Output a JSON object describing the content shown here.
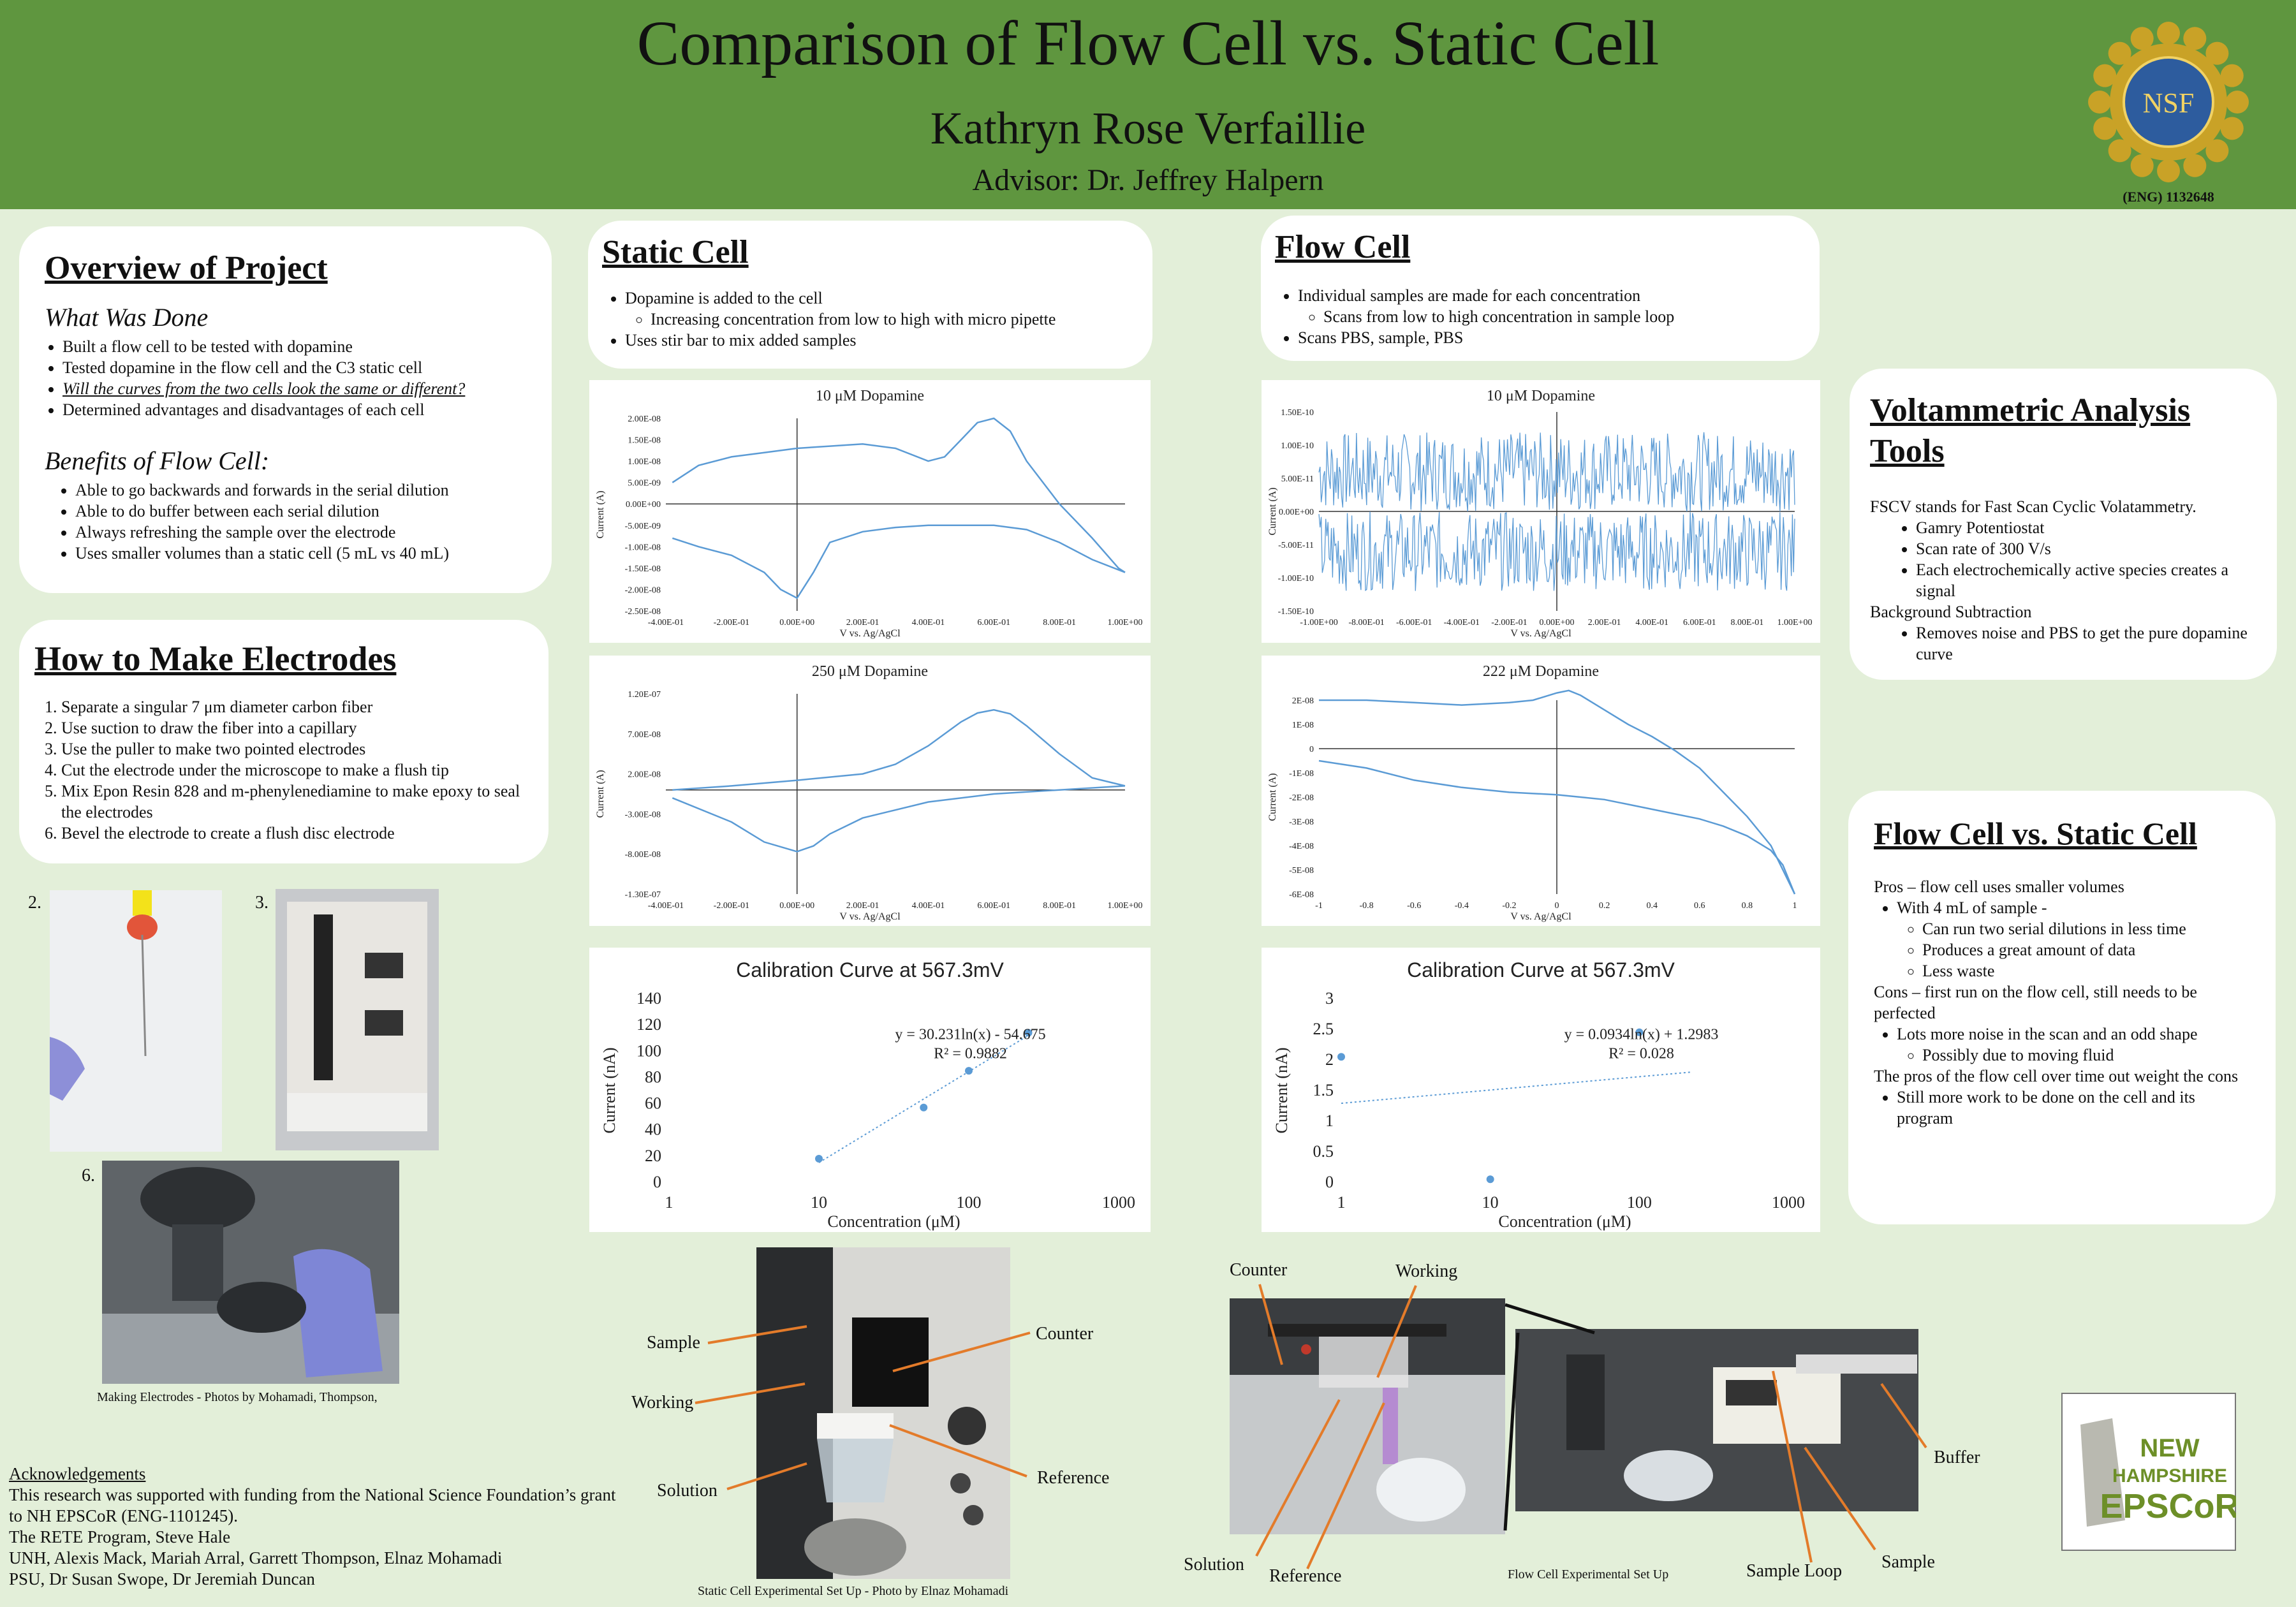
{
  "header": {
    "title": "Comparison of Flow Cell vs. Static Cell",
    "author": "Kathryn Rose Verfaillie",
    "advisor": "Advisor: Dr. Jeffrey Halpern",
    "nsf_logo_text": "NSF",
    "grant": "(ENG) 1132648"
  },
  "overview": {
    "heading": "Overview of Project",
    "what_done_title": "What Was Done",
    "what_done": [
      "Built a flow cell to be tested with dopamine",
      "Tested dopamine in the flow cell and the C3 static cell",
      "Will the curves from the two cells look the same or different?",
      "Determined advantages and disadvantages of each cell"
    ],
    "benefits_title": "Benefits of Flow Cell:",
    "benefits": [
      "Able to go backwards and forwards in the serial dilution",
      "Able to do buffer between each serial dilution",
      "Always refreshing the sample over the electrode",
      "Uses smaller volumes than a static cell (5 mL vs 40 mL)"
    ]
  },
  "electrodes": {
    "heading": "How to Make Electrodes",
    "steps": [
      "Separate a singular 7 μm diameter carbon fiber",
      "Use suction to draw the fiber into a capillary",
      "Use the puller to make two pointed electrodes",
      "Cut the electrode under the microscope to make a flush tip",
      "Mix Epon Resin 828 and m-phenylenediamine to make epoxy to seal the electrodes",
      "Bevel the electrode to create a flush disc electrode"
    ],
    "photo_labels": [
      "2.",
      "3.",
      "6."
    ],
    "caption": "Making Electrodes  - Photos by Mohamadi, Thompson,"
  },
  "acknowledgements": {
    "heading": "Acknowledgements",
    "lines": [
      "This research was supported with funding from the National Science Foundation’s grant to NH EPSCoR (ENG-1101245).",
      "The RETE Program, Steve Hale",
      "UNH, Alexis Mack, Mariah Arral, Garrett Thompson, Elnaz Mohamadi",
      "PSU, Dr Susan Swope, Dr Jeremiah Duncan"
    ]
  },
  "static_cell": {
    "heading": "Static Cell",
    "item1": "Dopamine is added to the cell",
    "item1_sub": "Increasing concentration from low to high  with micro pipette",
    "item2": "Uses stir bar to mix added samples"
  },
  "flow_cell": {
    "heading": "Flow Cell",
    "item1": "Individual samples are made for each concentration",
    "item1_sub": "Scans from low to high concentration in sample loop",
    "item2": "Scans PBS, sample, PBS"
  },
  "voltammetric": {
    "heading_line1": "Voltammetric Analysis",
    "heading_line2": "Tools",
    "intro": "FSCV stands for Fast Scan Cyclic Volatammetry.",
    "items": [
      "Gamry Potentiostat",
      "Scan rate of 300 V/s",
      "Each electrochemically active species creates a signal"
    ],
    "bg_title": "Background Subtraction",
    "bg_item": "Removes noise and PBS to get the pure dopamine curve"
  },
  "comparison": {
    "heading": "Flow Cell vs. Static Cell",
    "pros": "Pros – flow cell uses smaller volumes",
    "pros_item": "With 4 mL of sample -",
    "pros_sub": [
      "Can run two serial dilutions in less time",
      "Produces a great amount of data",
      "Less waste"
    ],
    "cons": "Cons – first run on the flow cell, still needs to be perfected",
    "cons_item": "Lots more noise in the scan and an odd shape",
    "cons_sub": "Possibly due to moving fluid",
    "conclusion": "The pros of the flow cell over time out weight the cons",
    "conclusion_item": "Still more work to be done on the cell and its program"
  },
  "static_setup": {
    "labels": {
      "sample": "Sample",
      "working": "Working",
      "solution": "Solution",
      "counter": "Counter",
      "reference": "Reference"
    },
    "caption": "Static Cell Experimental Set Up - Photo by Elnaz Mohamadi"
  },
  "flow_setup": {
    "labels": {
      "counter": "Counter",
      "working": "Working",
      "solution": "Solution",
      "reference": "Reference",
      "sample_loop": "Sample Loop",
      "sample": "Sample",
      "buffer": "Buffer"
    },
    "caption": "Flow Cell Experimental Set Up"
  },
  "epscor_logo": {
    "line1": "NEW",
    "line2": "HAMPSHIRE",
    "line3": "EPSCoR"
  },
  "chart_data": [
    {
      "id": "static-10",
      "type": "line",
      "title": "10 μM Dopamine",
      "xlabel": "V vs. Ag/AgCl",
      "ylabel": "Current (A)",
      "xlim": [
        -0.4,
        1.0
      ],
      "ylim": [
        -2.5e-08,
        2e-08
      ],
      "xticks": [
        "-4.00E-01",
        "-2.00E-01",
        "0.00E+00",
        "2.00E-01",
        "4.00E-01",
        "6.00E-01",
        "8.00E-01",
        "1.00E+00"
      ],
      "yticks": [
        "2.00E-08",
        "1.50E-08",
        "1.00E-08",
        "5.00E-09",
        "0.00E+00",
        "-5.00E-09",
        "-1.00E-08",
        "-1.50E-08",
        "-2.00E-08",
        "-2.50E-08"
      ],
      "series": [
        {
          "x": [
            -0.38,
            -0.3,
            -0.2,
            -0.1,
            0.0,
            0.1,
            0.2,
            0.3,
            0.4,
            0.45,
            0.5,
            0.55,
            0.6,
            0.65,
            0.7,
            0.8,
            0.9,
            0.98,
            1.0
          ],
          "y": [
            5e-09,
            9e-09,
            1.1e-08,
            1.2e-08,
            1.3e-08,
            1.35e-08,
            1.4e-08,
            1.3e-08,
            1e-08,
            1.1e-08,
            1.5e-08,
            1.9e-08,
            2e-08,
            1.7e-08,
            1e-08,
            0.0,
            -8e-09,
            -1.5e-08,
            -1.6e-08
          ]
        },
        {
          "x": [
            1.0,
            0.9,
            0.8,
            0.7,
            0.6,
            0.5,
            0.4,
            0.3,
            0.2,
            0.1,
            0.05,
            0.0,
            -0.05,
            -0.1,
            -0.2,
            -0.3,
            -0.38
          ],
          "y": [
            -1.6e-08,
            -1.3e-08,
            -9e-09,
            -6e-09,
            -5e-09,
            -5e-09,
            -5e-09,
            -5.5e-09,
            -6.5e-09,
            -9e-09,
            -1.6e-08,
            -2.2e-08,
            -2e-08,
            -1.6e-08,
            -1.2e-08,
            -1e-08,
            -8e-09
          ]
        }
      ]
    },
    {
      "id": "static-250",
      "type": "line",
      "title": "250 μM Dopamine",
      "xlabel": "V vs. Ag/AgCl",
      "ylabel": "Current (A)",
      "xlim": [
        -0.4,
        1.0
      ],
      "ylim": [
        -1.3e-07,
        1.2e-07
      ],
      "xticks": [
        "-4.00E-01",
        "-2.00E-01",
        "0.00E+00",
        "2.00E-01",
        "4.00E-01",
        "6.00E-01",
        "8.00E-01",
        "1.00E+00"
      ],
      "yticks": [
        "1.20E-07",
        "7.00E-08",
        "2.00E-08",
        "-3.00E-08",
        "-8.00E-08",
        "-1.30E-07"
      ],
      "series": [
        {
          "x": [
            -0.38,
            -0.2,
            0.0,
            0.2,
            0.3,
            0.4,
            0.5,
            0.55,
            0.6,
            0.65,
            0.7,
            0.8,
            0.9,
            1.0
          ],
          "y": [
            0.0,
            5e-09,
            1.2e-08,
            2e-08,
            3.2e-08,
            5.5e-08,
            8.5e-08,
            9.6e-08,
            1e-07,
            9.5e-08,
            8e-08,
            4.5e-08,
            1.5e-08,
            5e-09
          ]
        },
        {
          "x": [
            1.0,
            0.8,
            0.6,
            0.4,
            0.2,
            0.1,
            0.05,
            0.0,
            -0.1,
            -0.2,
            -0.38
          ],
          "y": [
            5e-09,
            0.0,
            -5e-09,
            -1.5e-08,
            -3.5e-08,
            -5.5e-08,
            -7e-08,
            -7.7e-08,
            -6.5e-08,
            -4e-08,
            -1e-08
          ]
        }
      ]
    },
    {
      "id": "flow-10",
      "type": "line",
      "title": "10 μM Dopamine",
      "xlabel": "V vs. Ag/AgCl",
      "ylabel": "Current (A)",
      "xlim": [
        -1.0,
        1.0
      ],
      "ylim": [
        -1.5e-10,
        1.5e-10
      ],
      "xticks": [
        "-1.00E+00",
        "-8.00E-01",
        "-6.00E-01",
        "-4.00E-01",
        "-2.00E-01",
        "0.00E+00",
        "2.00E-01",
        "4.00E-01",
        "6.00E-01",
        "8.00E-01",
        "1.00E+00"
      ],
      "yticks": [
        "1.50E-10",
        "1.00E-10",
        "5.00E-11",
        "0.00E+00",
        "-5.00E-11",
        "-1.00E-10",
        "-1.50E-10"
      ],
      "noise_band": {
        "upper": [
          0.0,
          1.2e-10
        ],
        "lower": [
          -1.2e-10,
          0.0
        ]
      }
    },
    {
      "id": "flow-222",
      "type": "line",
      "title": "222 μM Dopamine",
      "xlabel": "V vs. Ag/AgCl",
      "ylabel": "Current (A)",
      "xlim": [
        -1.0,
        1.0
      ],
      "ylim": [
        -6e-08,
        2e-08
      ],
      "xticks": [
        "-1",
        "-0.8",
        "-0.6",
        "-0.4",
        "-0.2",
        "0",
        "0.2",
        "0.4",
        "0.6",
        "0.8",
        "1"
      ],
      "yticks": [
        "2E-08",
        "1E-08",
        "0",
        "-1E-08",
        "-2E-08",
        "-3E-08",
        "-4E-08",
        "-5E-08",
        "-6E-08"
      ],
      "series": [
        {
          "x": [
            -1.0,
            -0.8,
            -0.6,
            -0.4,
            -0.2,
            -0.1,
            0.0,
            0.05,
            0.1,
            0.2,
            0.3,
            0.4,
            0.5,
            0.6,
            0.7,
            0.8,
            0.9,
            0.95,
            1.0
          ],
          "y": [
            2e-08,
            2e-08,
            1.9e-08,
            1.8e-08,
            1.9e-08,
            2e-08,
            2.3e-08,
            2.4e-08,
            2.2e-08,
            1.6e-08,
            1e-08,
            5e-09,
            -1e-09,
            -8e-09,
            -1.8e-08,
            -2.8e-08,
            -4e-08,
            -5e-08,
            -6e-08
          ]
        },
        {
          "x": [
            1.0,
            0.95,
            0.9,
            0.8,
            0.7,
            0.6,
            0.5,
            0.4,
            0.3,
            0.2,
            0.1,
            0.0,
            -0.2,
            -0.4,
            -0.6,
            -0.8,
            -1.0
          ],
          "y": [
            -6e-08,
            -4.8e-08,
            -4.2e-08,
            -3.6e-08,
            -3.2e-08,
            -2.9e-08,
            -2.7e-08,
            -2.5e-08,
            -2.3e-08,
            -2.1e-08,
            -2e-08,
            -1.9e-08,
            -1.8e-08,
            -1.6e-08,
            -1.3e-08,
            -8e-09,
            -5e-09
          ]
        }
      ]
    },
    {
      "id": "static-calibration",
      "type": "scatter",
      "title": "Calibration Curve at 567.3mV",
      "xlabel": "Concentration (μM)",
      "ylabel": "Current (nA)",
      "xscale": "log",
      "xlim": [
        1,
        1000
      ],
      "ylim": [
        0,
        140
      ],
      "xticks": [
        "1",
        "10",
        "100",
        "1000"
      ],
      "yticks": [
        "0",
        "20",
        "40",
        "60",
        "80",
        "100",
        "120",
        "140"
      ],
      "points": {
        "x": [
          10,
          50,
          100,
          250
        ],
        "y": [
          18,
          57,
          85,
          114
        ]
      },
      "trendline": {
        "x": [
          10,
          250
        ],
        "y": [
          15,
          112
        ]
      },
      "equation": "y = 30.231ln(x) - 54.675",
      "r2": "R² = 0.9882"
    },
    {
      "id": "flow-calibration",
      "type": "scatter",
      "title": "Calibration Curve at 567.3mV",
      "xlabel": "Concentration (μM)",
      "ylabel": "Current (nA)",
      "xscale": "log",
      "xlim": [
        1,
        1000
      ],
      "ylim": [
        0,
        3
      ],
      "xticks": [
        "1",
        "10",
        "100",
        "1000"
      ],
      "yticks": [
        "0",
        "0.5",
        "1",
        "1.5",
        "2",
        "2.5",
        "3"
      ],
      "points": {
        "x": [
          1,
          10,
          100
        ],
        "y": [
          2.05,
          0.05,
          2.45
        ]
      },
      "trendline": {
        "x": [
          1,
          222
        ],
        "y": [
          1.29,
          1.8
        ]
      },
      "equation": "y = 0.0934ln(x) + 1.2983",
      "r2": "R² = 0.028"
    }
  ]
}
